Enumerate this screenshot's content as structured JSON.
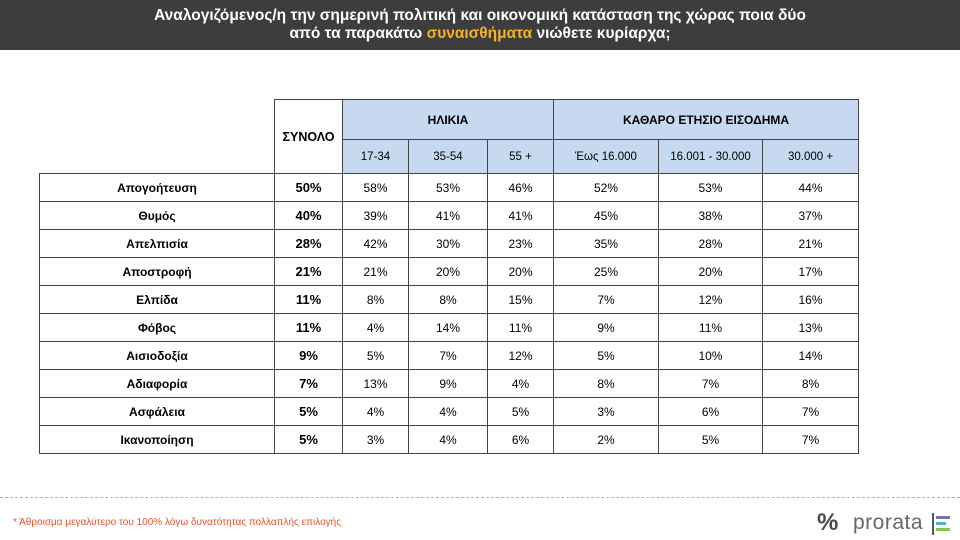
{
  "title": {
    "line1": "Αναλογιζόμενος/η την σημερινή πολιτική και οικονομική κατάσταση της χώρας ποια δύο",
    "line2_pre": "από τα παρακάτω ",
    "line2_highlight": "συναισθήματα",
    "line2_post": " νιώθετε κυρίαρχα;"
  },
  "table": {
    "total_header": "ΣΥΝΟΛΟ",
    "group_age": "ΗΛΙΚΙΑ",
    "group_income": "ΚΑΘΑΡΟ ΕΤΗΣΙΟ ΕΙΣΟΔΗΜΑ",
    "subheaders": [
      "17-34",
      "35-54",
      "55 +",
      "Έως 16.000",
      "16.001 - 30.000",
      "30.000 +"
    ],
    "rows": [
      {
        "label": "Απογοήτευση",
        "total": "50%",
        "values": [
          "58%",
          "53%",
          "46%",
          "52%",
          "53%",
          "44%"
        ]
      },
      {
        "label": "Θυμός",
        "total": "40%",
        "values": [
          "39%",
          "41%",
          "41%",
          "45%",
          "38%",
          "37%"
        ]
      },
      {
        "label": "Απελπισία",
        "total": "28%",
        "values": [
          "42%",
          "30%",
          "23%",
          "35%",
          "28%",
          "21%"
        ]
      },
      {
        "label": "Αποστροφή",
        "total": "21%",
        "values": [
          "21%",
          "20%",
          "20%",
          "25%",
          "20%",
          "17%"
        ]
      },
      {
        "label": "Ελπίδα",
        "total": "11%",
        "values": [
          "8%",
          "8%",
          "15%",
          "7%",
          "12%",
          "16%"
        ]
      },
      {
        "label": "Φόβος",
        "total": "11%",
        "values": [
          "4%",
          "14%",
          "11%",
          "9%",
          "11%",
          "13%"
        ]
      },
      {
        "label": "Αισιοδοξία",
        "total": "9%",
        "values": [
          "5%",
          "7%",
          "12%",
          "5%",
          "10%",
          "14%"
        ]
      },
      {
        "label": "Αδιαφορία",
        "total": "7%",
        "values": [
          "13%",
          "9%",
          "4%",
          "8%",
          "7%",
          "8%"
        ]
      },
      {
        "label": "Ασφάλεια",
        "total": "5%",
        "values": [
          "4%",
          "4%",
          "5%",
          "3%",
          "6%",
          "7%"
        ]
      },
      {
        "label": "Ικανοποίηση",
        "total": "5%",
        "values": [
          "3%",
          "4%",
          "6%",
          "2%",
          "5%",
          "7%"
        ]
      }
    ]
  },
  "footnote": "* Άθροισμα μεγαλύτερο του 100% λόγω δυνατότητας πολλαπλής επιλογής",
  "logo": {
    "symbol": "%",
    "text": "prorata"
  },
  "colors": {
    "header_bg": "#3d3d3d",
    "highlight": "#f2b22a",
    "table_header_bg": "#c6d9f1",
    "footnote": "#e8502a"
  }
}
